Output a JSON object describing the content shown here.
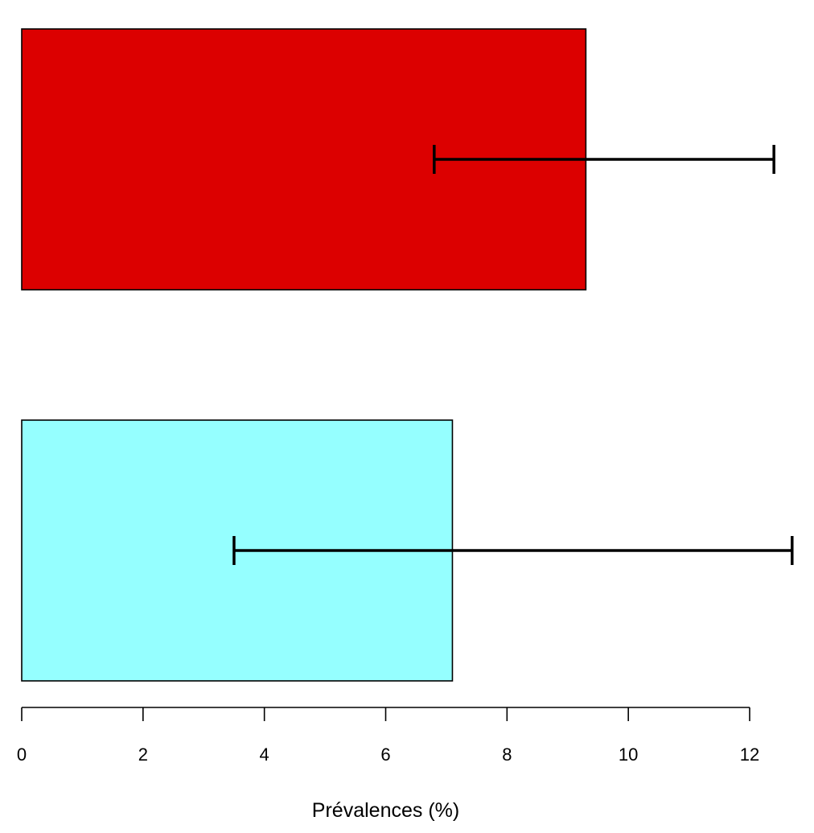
{
  "chart_data": {
    "type": "bar",
    "orientation": "horizontal",
    "xlabel": "Prévalences (%)",
    "xlim": [
      0,
      12
    ],
    "xticks": [
      0,
      2,
      4,
      6,
      8,
      10,
      12
    ],
    "grid": false,
    "legend": "none",
    "bars": [
      {
        "value": 9.3,
        "error_low": 6.8,
        "error_high": 12.4,
        "color": "#dc0000"
      },
      {
        "value": 7.1,
        "error_low": 3.5,
        "error_high": 12.7,
        "color": "#95ffff"
      }
    ]
  }
}
